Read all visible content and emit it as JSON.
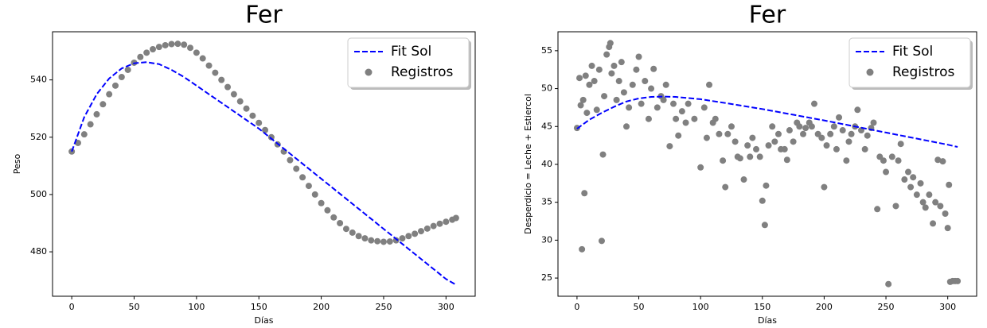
{
  "chart_data": [
    {
      "type": "scatter",
      "title": "Fer",
      "x_label": "Días",
      "y_label": "Peso",
      "xlim": [
        -15.4,
        323.4
      ],
      "ylim": [
        464.5,
        556.8
      ],
      "xticks": [
        0,
        50,
        100,
        150,
        200,
        250,
        300
      ],
      "yticks": [
        480,
        500,
        520,
        540
      ],
      "legend": "upper right",
      "grid": false,
      "series": [
        {
          "name": "Fit Sol",
          "kind": "line",
          "linestyle": "dashed",
          "color": "#0000ff",
          "x": [
            0,
            10,
            20,
            30,
            40,
            50,
            60,
            70,
            80,
            90,
            100,
            110,
            120,
            130,
            140,
            150,
            160,
            170,
            180,
            190,
            200,
            210,
            220,
            230,
            240,
            250,
            260,
            270,
            280,
            290,
            300,
            308
          ],
          "values": [
            515,
            527,
            535,
            540.5,
            544,
            545.8,
            546.2,
            545.5,
            543.5,
            541,
            538,
            535,
            532,
            529,
            526,
            523,
            519.5,
            516,
            512.5,
            509,
            505.5,
            502,
            498.5,
            495,
            491.5,
            488,
            484.5,
            481,
            477.5,
            474,
            470.5,
            468.5
          ]
        },
        {
          "name": "Registros",
          "kind": "scatter",
          "color": "#808080",
          "x": [
            0,
            5,
            10,
            15,
            20,
            25,
            30,
            35,
            40,
            45,
            50,
            55,
            60,
            65,
            70,
            75,
            80,
            85,
            90,
            95,
            100,
            105,
            110,
            115,
            120,
            125,
            130,
            135,
            140,
            145,
            150,
            155,
            160,
            165,
            170,
            175,
            180,
            185,
            190,
            195,
            200,
            205,
            210,
            215,
            220,
            225,
            230,
            235,
            240,
            245,
            250,
            255,
            260,
            265,
            270,
            275,
            280,
            285,
            290,
            295,
            300,
            305,
            308
          ],
          "values": [
            515,
            518,
            521,
            524.5,
            528,
            531.5,
            535,
            538,
            541,
            543.5,
            546,
            548,
            549.5,
            550.7,
            551.5,
            552.1,
            552.5,
            552.6,
            552.3,
            551.2,
            549.5,
            547.5,
            545,
            542.5,
            540,
            537.5,
            535,
            532.5,
            530,
            527.5,
            525,
            522.5,
            520,
            517.5,
            515,
            512,
            509,
            506,
            503,
            500,
            497,
            494.5,
            492,
            490,
            488,
            486.7,
            485.5,
            484.7,
            484,
            483.7,
            483.5,
            483.6,
            484,
            484.7,
            485.5,
            486.3,
            487.2,
            488.1,
            489,
            489.8,
            490.5,
            491.2,
            491.8
          ]
        }
      ]
    },
    {
      "type": "scatter",
      "title": "Fer",
      "x_label": "Días",
      "y_label": "Desperdicio = Leche + Estiercol",
      "xlim": [
        -15.4,
        323.4
      ],
      "ylim": [
        22.6,
        57.5
      ],
      "xticks": [
        0,
        50,
        100,
        150,
        200,
        250,
        300
      ],
      "yticks": [
        25,
        30,
        35,
        40,
        45,
        50,
        55
      ],
      "legend": "upper right",
      "grid": false,
      "series": [
        {
          "name": "Fit Sol",
          "kind": "line",
          "linestyle": "dashed",
          "color": "#0000ff",
          "x": [
            0,
            10,
            20,
            30,
            40,
            50,
            60,
            70,
            80,
            100,
            120,
            150,
            200,
            250,
            300,
            308
          ],
          "values": [
            44.7,
            45.9,
            46.8,
            47.6,
            48.3,
            48.7,
            48.9,
            48.95,
            48.9,
            48.6,
            48.1,
            47.3,
            45.8,
            44.2,
            42.6,
            42.3
          ]
        },
        {
          "name": "Registros",
          "kind": "scatter",
          "color": "#808080",
          "x": [
            0,
            2,
            3,
            4,
            5,
            6,
            7,
            8,
            10,
            12,
            14,
            16,
            18,
            20,
            21,
            22,
            24,
            26,
            27,
            28,
            30,
            32,
            34,
            36,
            38,
            40,
            42,
            45,
            48,
            50,
            52,
            55,
            58,
            60,
            62,
            65,
            68,
            70,
            72,
            75,
            78,
            80,
            82,
            85,
            88,
            90,
            95,
            100,
            103,
            105,
            107,
            110,
            112,
            115,
            118,
            120,
            122,
            125,
            128,
            130,
            132,
            135,
            138,
            140,
            142,
            145,
            148,
            150,
            152,
            153,
            155,
            158,
            160,
            163,
            165,
            168,
            170,
            172,
            175,
            178,
            180,
            183,
            185,
            188,
            190,
            192,
            195,
            198,
            200,
            202,
            205,
            208,
            210,
            212,
            215,
            218,
            220,
            222,
            225,
            227,
            230,
            233,
            235,
            238,
            240,
            243,
            245,
            248,
            250,
            252,
            255,
            258,
            260,
            262,
            265,
            268,
            270,
            272,
            275,
            278,
            280,
            282,
            285,
            288,
            290,
            292,
            294,
            296,
            298,
            300,
            301,
            302,
            304,
            306,
            308
          ],
          "values": [
            44.8,
            51.4,
            47.8,
            28.8,
            48.5,
            36.2,
            51.7,
            46.8,
            50.5,
            53,
            51,
            47.2,
            52.5,
            29.9,
            41.3,
            49,
            54.5,
            55.5,
            56,
            52,
            53,
            48.5,
            51,
            53.5,
            49.5,
            45,
            47.5,
            50.5,
            52.5,
            54.2,
            48,
            51,
            46,
            50,
            52.6,
            47.5,
            49,
            48.5,
            50.5,
            42.4,
            48,
            46,
            43.8,
            47,
            45.5,
            48,
            46,
            39.6,
            47.5,
            43.5,
            50.5,
            45.5,
            46,
            44,
            40.5,
            37,
            44,
            45,
            43,
            41,
            40.8,
            38,
            42.5,
            41,
            43.5,
            42,
            41,
            35.2,
            32,
            37.2,
            42.5,
            45,
            43,
            44,
            42,
            42,
            40.6,
            44.5,
            43,
            45.5,
            45,
            44,
            44.8,
            45.5,
            45,
            48,
            44,
            43.5,
            37,
            42.5,
            44,
            45,
            42,
            46.2,
            44.5,
            40.5,
            43,
            44,
            45,
            47.2,
            44.5,
            42,
            43.8,
            44.8,
            45.5,
            34.1,
            41,
            40.5,
            39,
            24.2,
            41,
            34.5,
            40.5,
            42.7,
            38,
            39,
            37,
            38.3,
            36,
            37.5,
            35,
            34.3,
            36,
            32.2,
            35,
            40.6,
            34.5,
            40.4,
            33.5,
            31.6,
            37.3,
            24.5,
            24.6,
            24.6,
            24.6
          ]
        }
      ]
    }
  ]
}
